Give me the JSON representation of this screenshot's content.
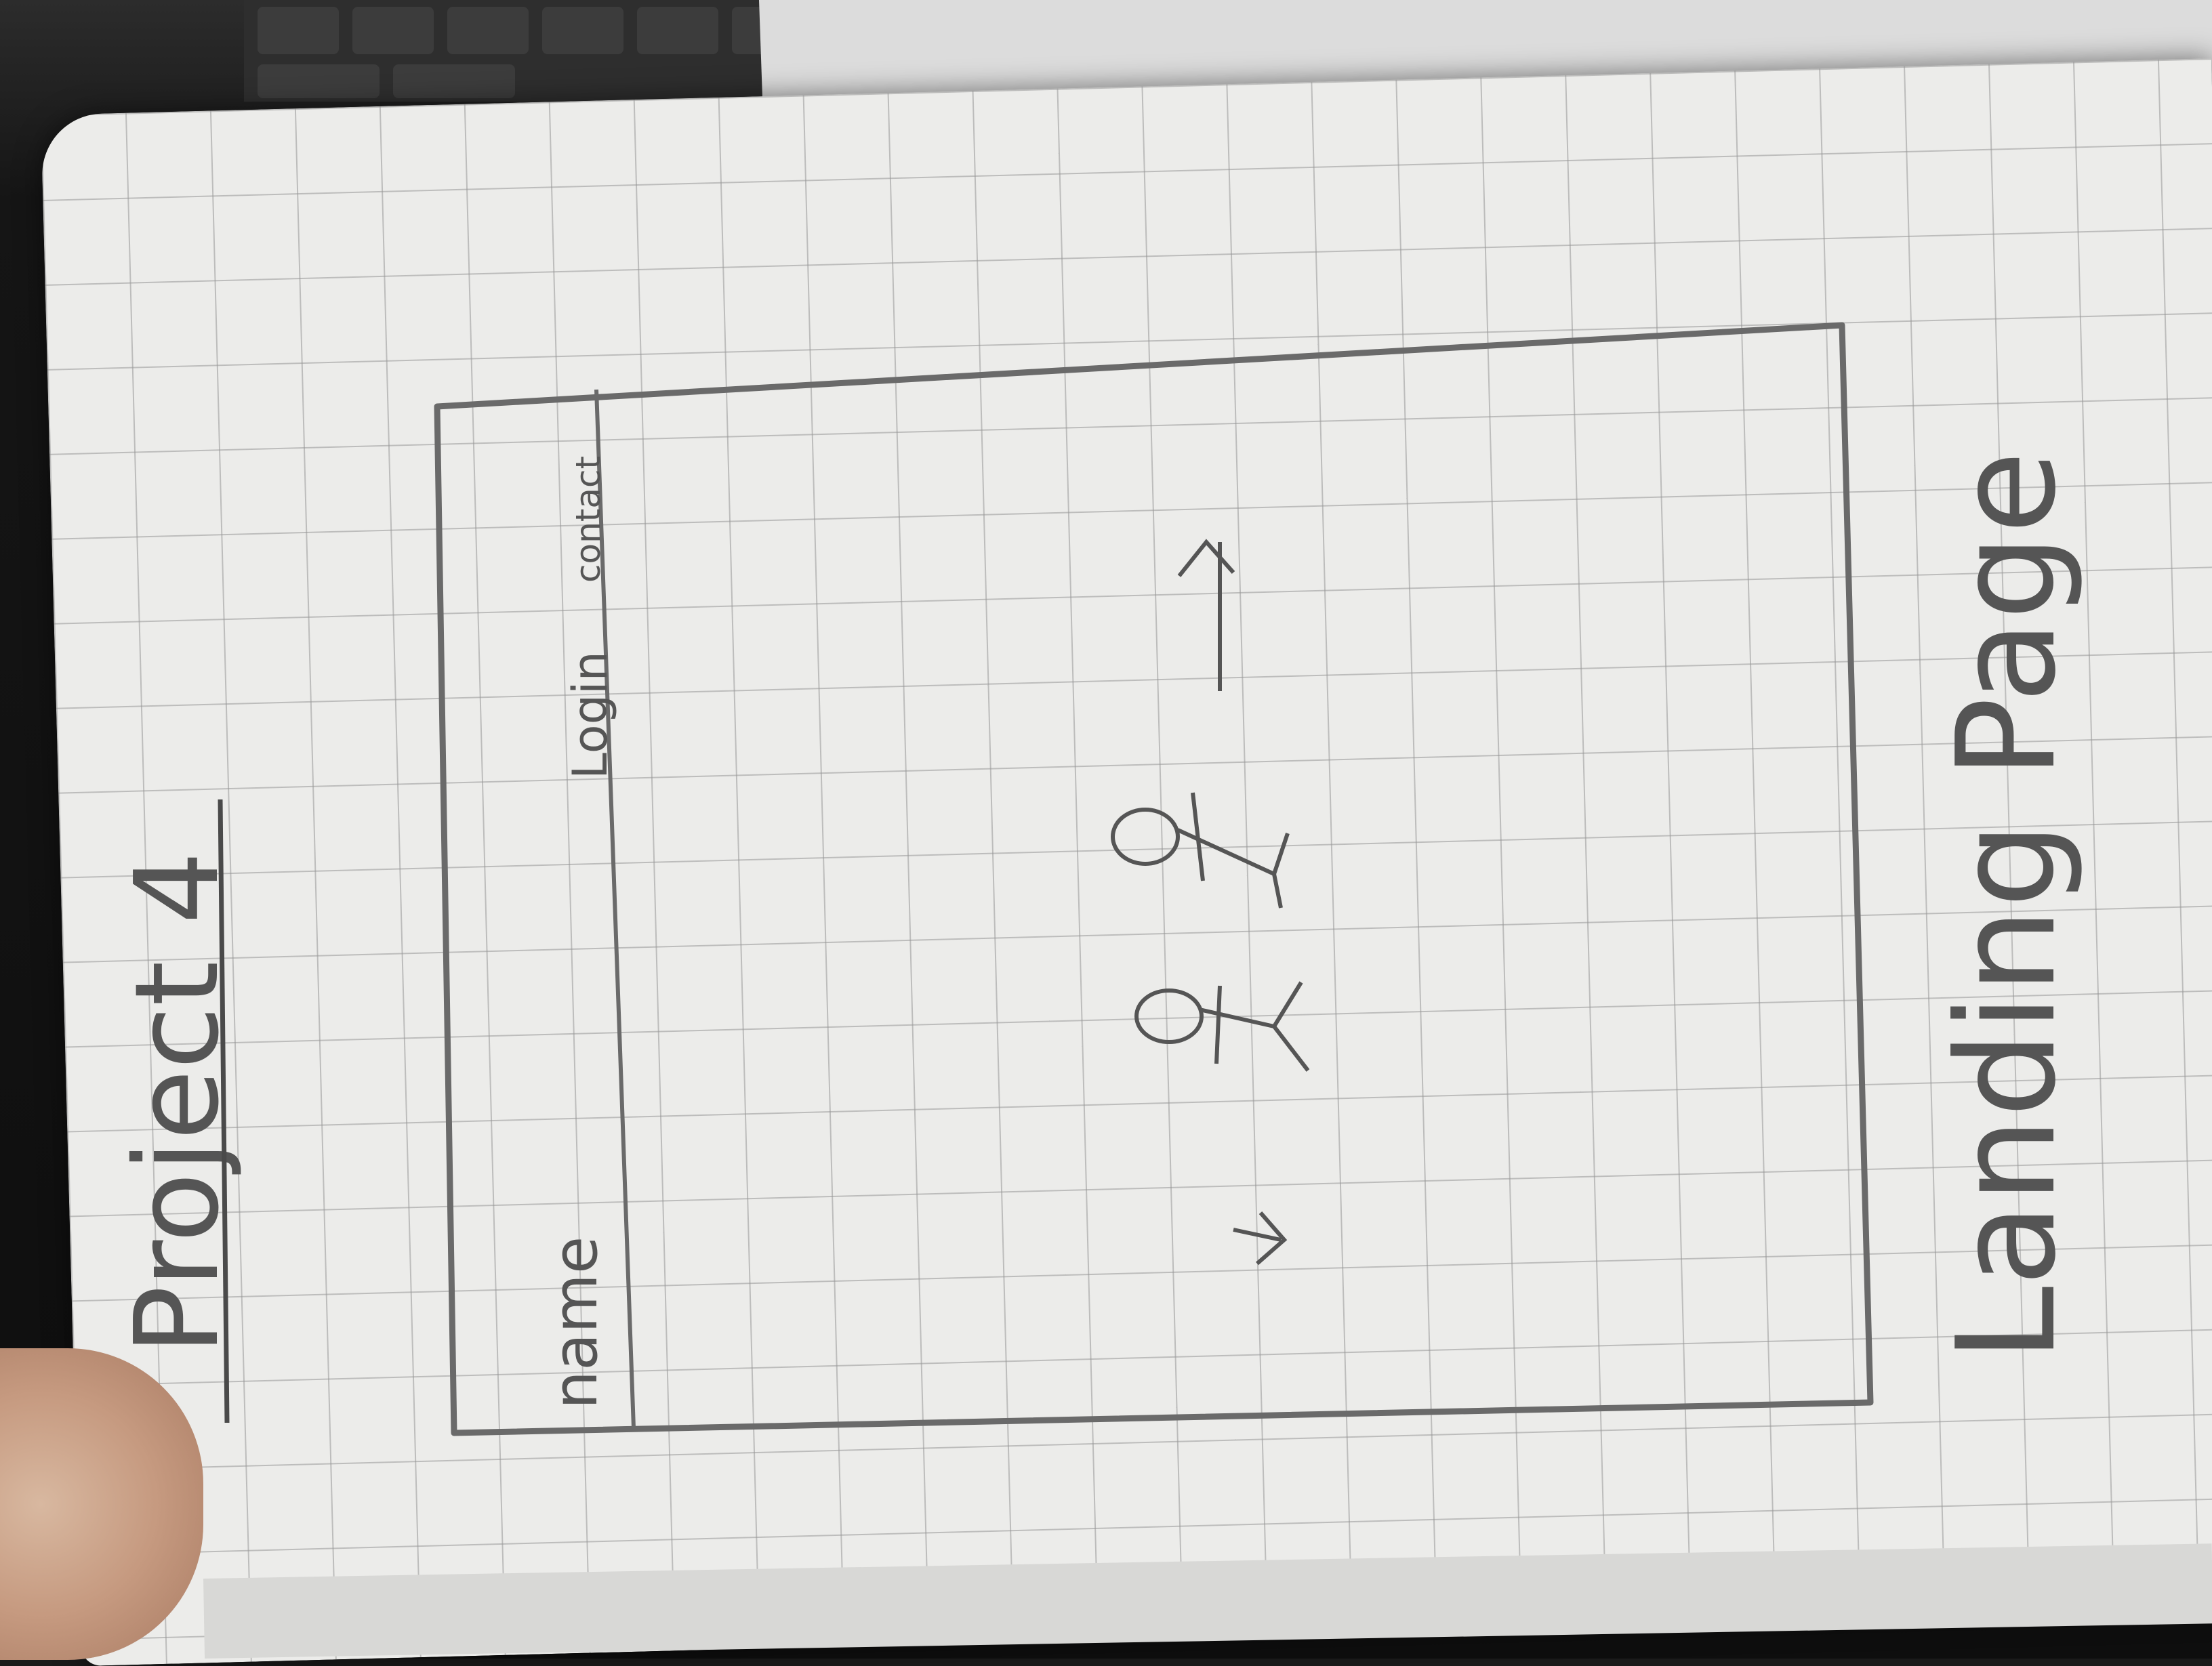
{
  "notebook": {
    "heading": "Project 4",
    "caption": "Landing Page",
    "wireframe": {
      "nav_left": "name",
      "nav_login": "Login",
      "nav_contact": "contact"
    }
  },
  "colors": {
    "pencil": "#555555",
    "paper": "#ececea",
    "grid": "#969696",
    "background": "#151515"
  }
}
